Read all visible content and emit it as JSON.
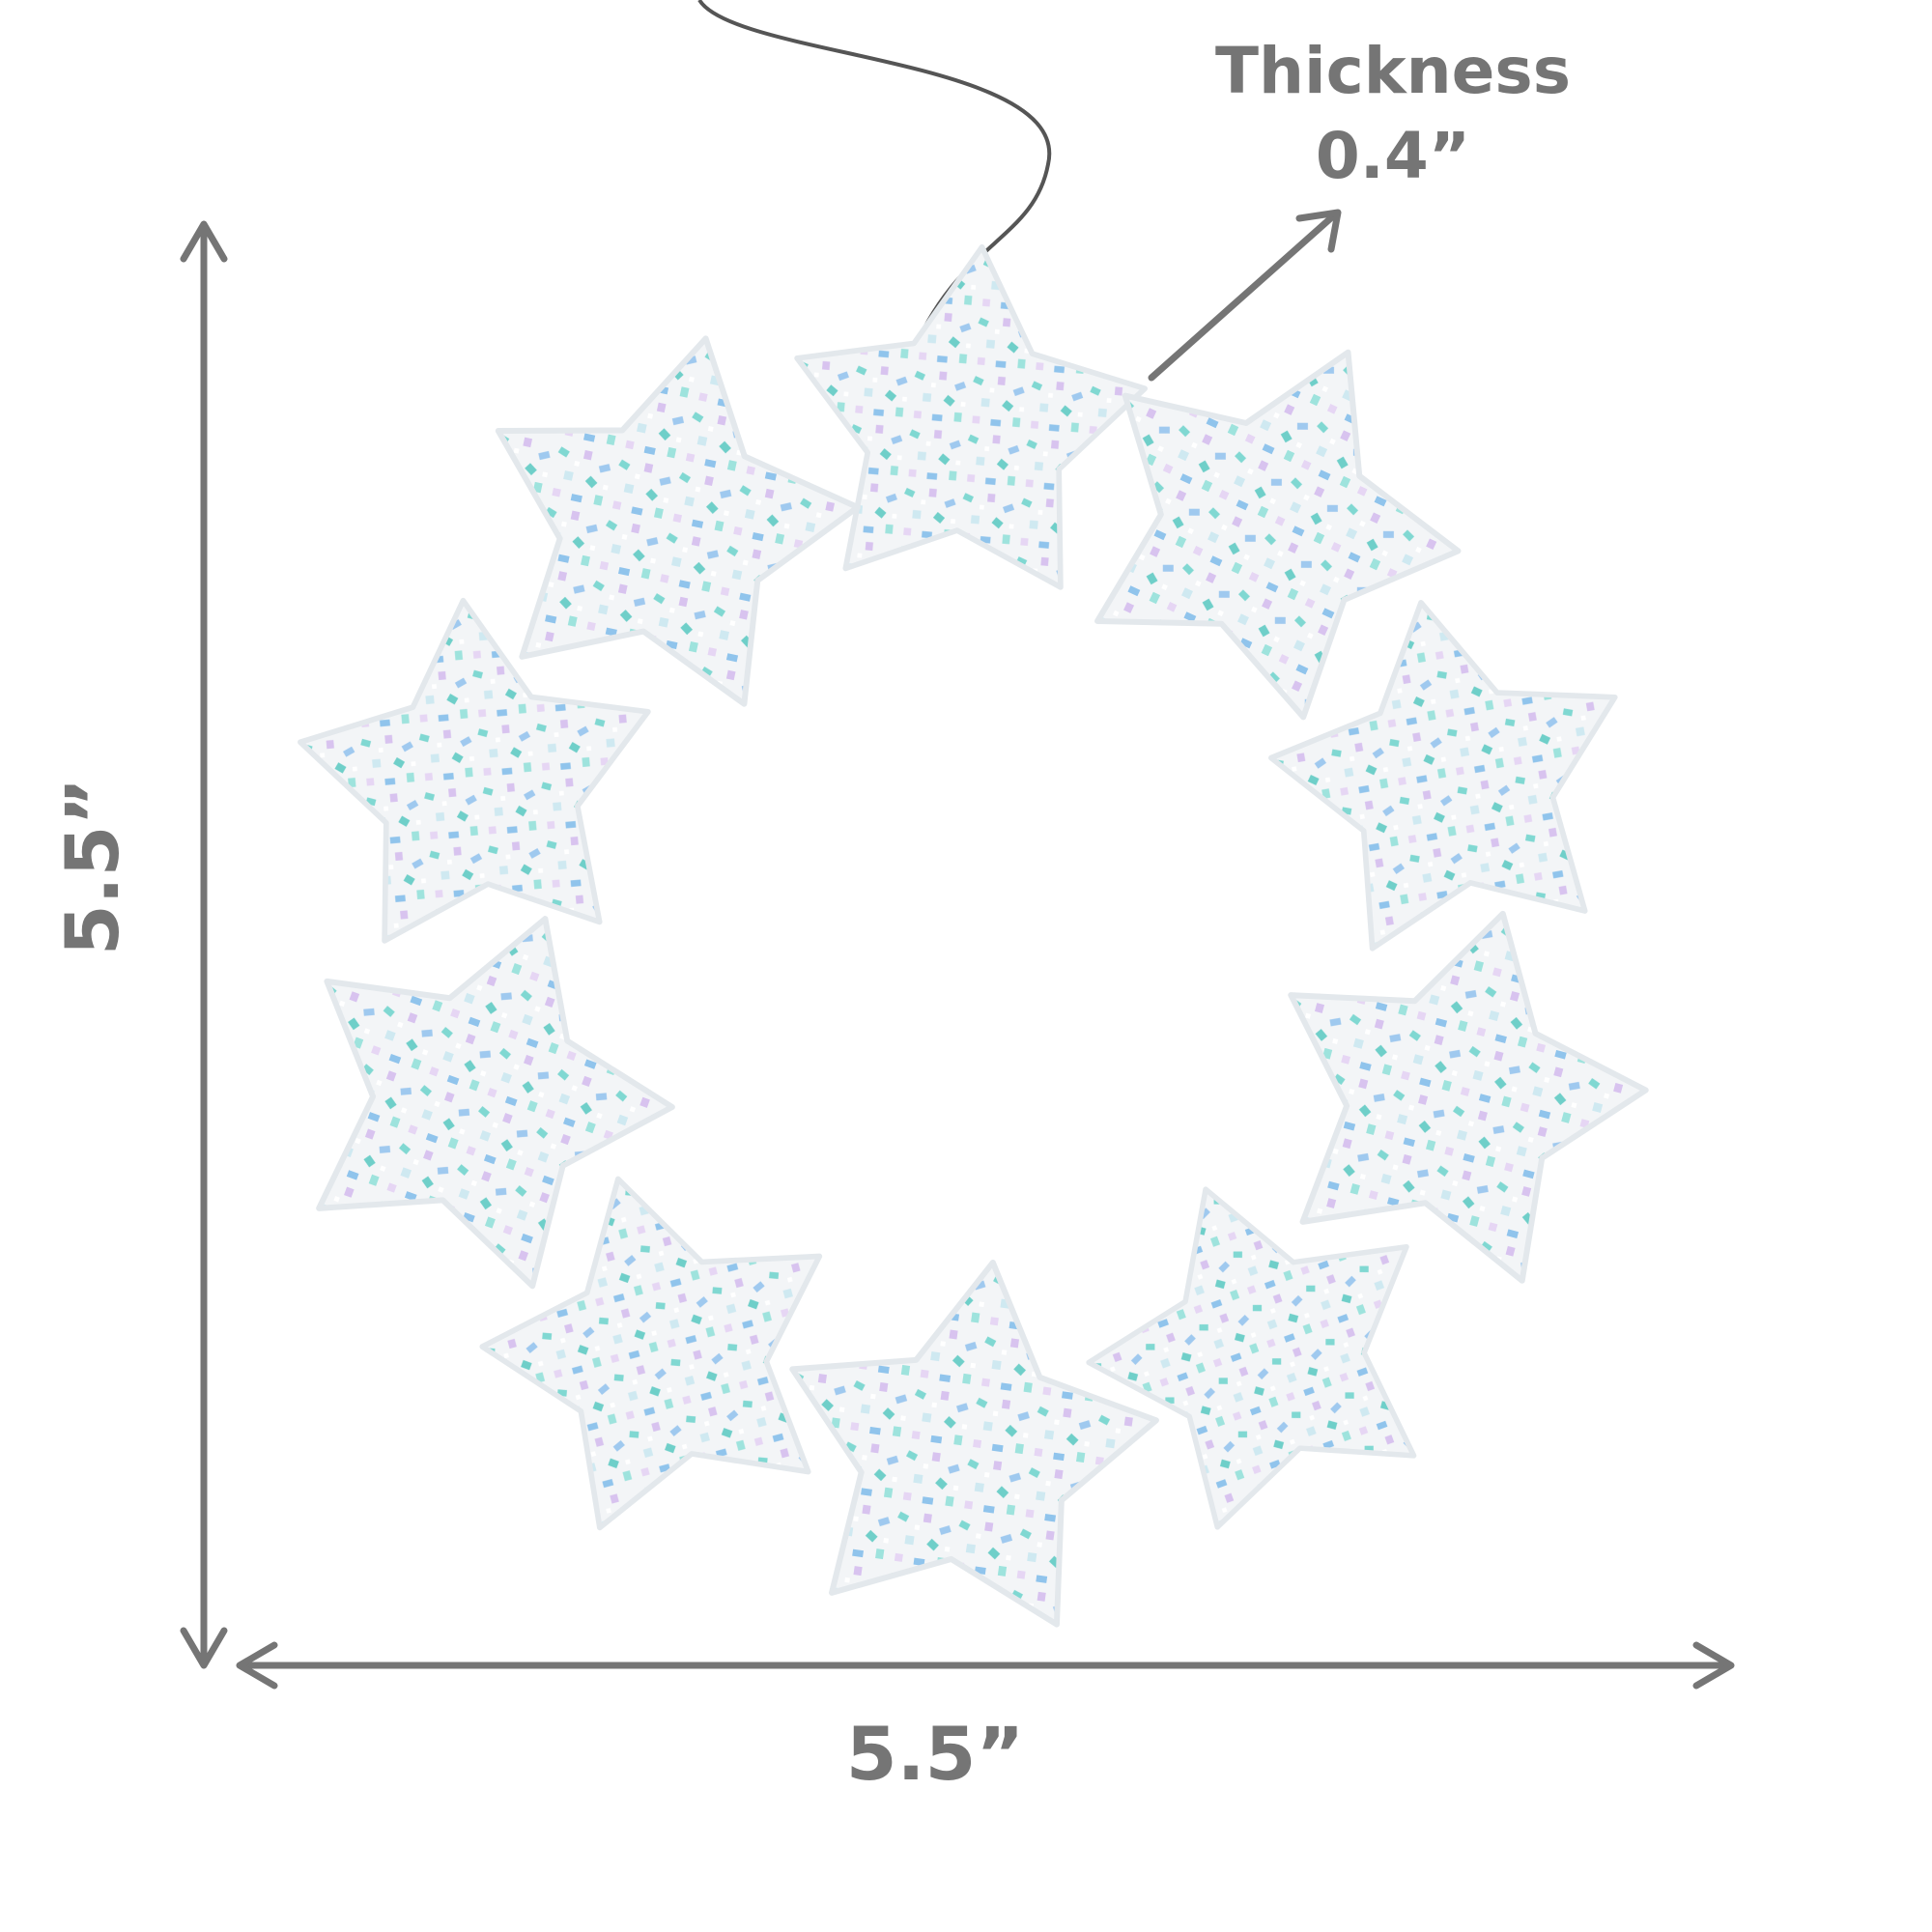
{
  "annotations": {
    "thickness": {
      "label": "Thickness",
      "value": "0.4”"
    },
    "height": "5.5”",
    "width": "5.5”"
  }
}
